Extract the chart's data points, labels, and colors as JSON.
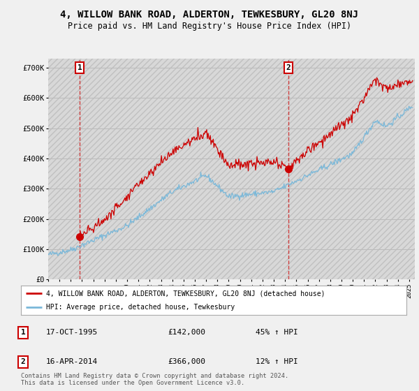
{
  "title": "4, WILLOW BANK ROAD, ALDERTON, TEWKESBURY, GL20 8NJ",
  "subtitle": "Price paid vs. HM Land Registry's House Price Index (HPI)",
  "title_fontsize": 10,
  "subtitle_fontsize": 8.5,
  "bg_color": "#f0f0f0",
  "ylim": [
    0,
    730000
  ],
  "yticks": [
    0,
    100000,
    200000,
    300000,
    400000,
    500000,
    600000,
    700000
  ],
  "ytick_labels": [
    "£0",
    "£100K",
    "£200K",
    "£300K",
    "£400K",
    "£500K",
    "£600K",
    "£700K"
  ],
  "sale1_year": 1995.79,
  "sale1_price": 142000,
  "sale2_year": 2014.29,
  "sale2_price": 366000,
  "hpi_color": "#7ab8d9",
  "sold_color": "#cc0000",
  "vline_color": "#cc0000",
  "grid_color": "#bbbbbb",
  "hatch_color": "#d8d8d8",
  "legend_label_sold": "4, WILLOW BANK ROAD, ALDERTON, TEWKESBURY, GL20 8NJ (detached house)",
  "legend_label_hpi": "HPI: Average price, detached house, Tewkesbury",
  "footer": "Contains HM Land Registry data © Crown copyright and database right 2024.\nThis data is licensed under the Open Government Licence v3.0.",
  "table_rows": [
    [
      "1",
      "17-OCT-1995",
      "£142,000",
      "45% ↑ HPI"
    ],
    [
      "2",
      "16-APR-2014",
      "£366,000",
      "12% ↑ HPI"
    ]
  ]
}
